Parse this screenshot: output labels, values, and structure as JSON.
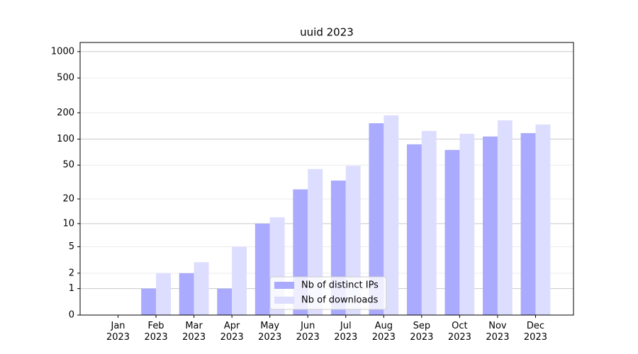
{
  "chart_data": {
    "type": "bar",
    "title": "uuid 2023",
    "categories": [
      "Jan\n2023",
      "Feb\n2023",
      "Mar\n2023",
      "Apr\n2023",
      "May\n2023",
      "Jun\n2023",
      "Jul\n2023",
      "Aug\n2023",
      "Sep\n2023",
      "Oct\n2023",
      "Nov\n2023",
      "Dec\n2023"
    ],
    "series": [
      {
        "name": "Nb of distinct IPs",
        "color": "#aaaaff",
        "values": [
          0,
          1,
          2,
          1,
          10,
          26,
          33,
          152,
          87,
          75,
          107,
          117
        ]
      },
      {
        "name": "Nb of downloads",
        "color": "#ddddff",
        "values": [
          0,
          2,
          3,
          5,
          12,
          45,
          49,
          187,
          124,
          115,
          164,
          147
        ]
      }
    ],
    "yscale": "log1p",
    "ylim": [
      0,
      1270
    ],
    "yticks": [
      0,
      1,
      2,
      5,
      10,
      20,
      50,
      100,
      200,
      500,
      1000
    ],
    "grid": true,
    "legend": "lower center"
  }
}
